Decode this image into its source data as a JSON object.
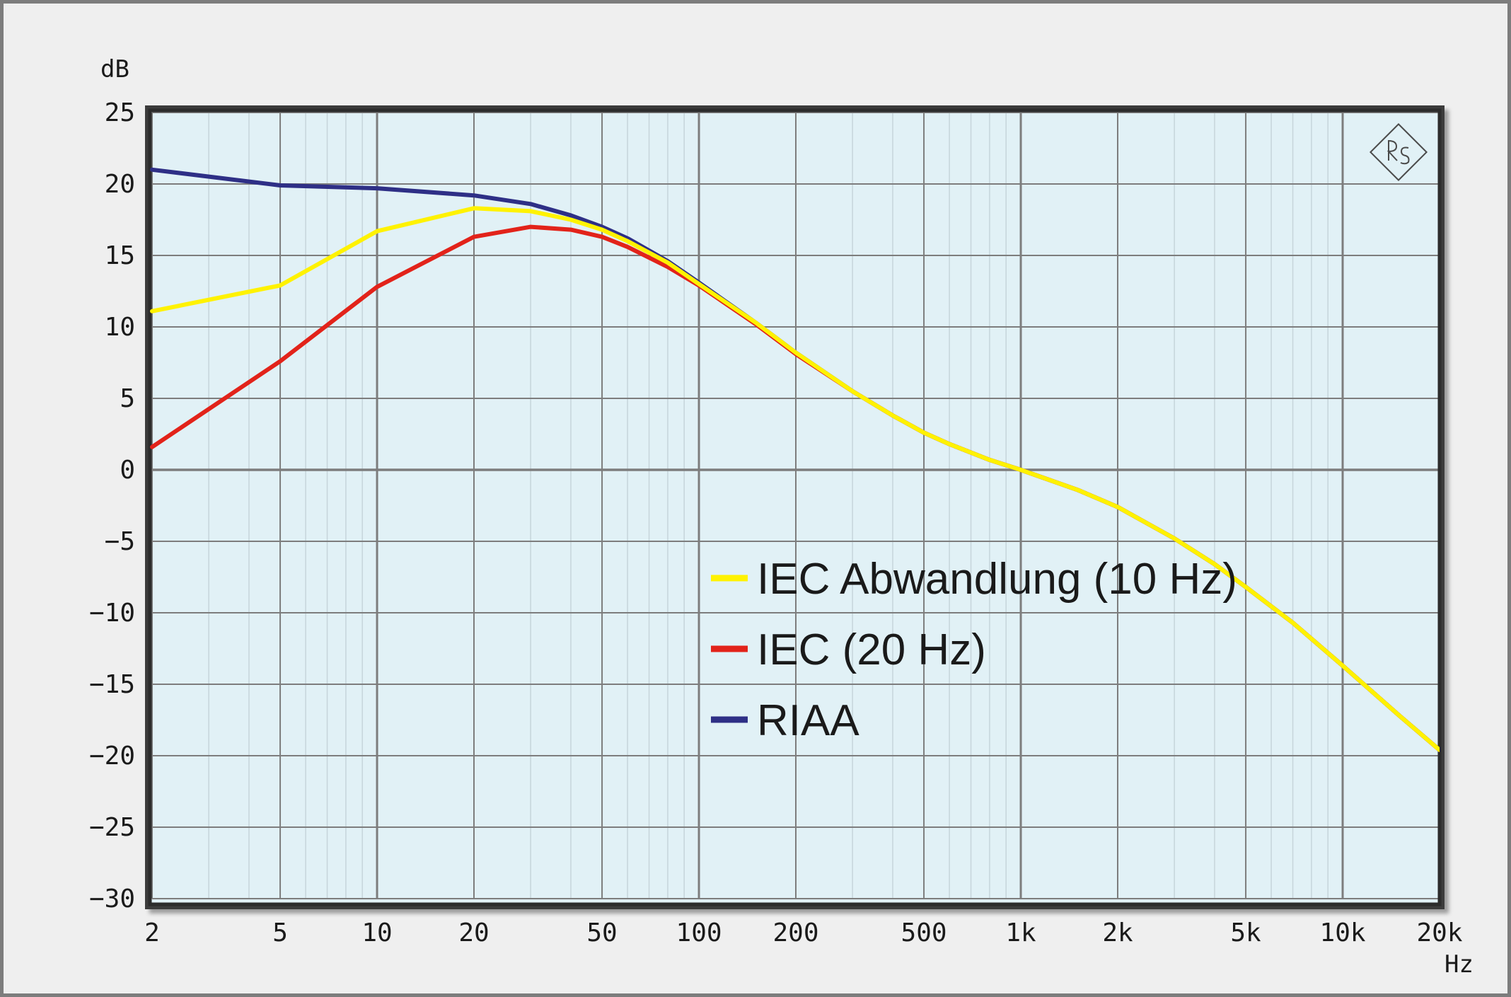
{
  "chart_data": {
    "type": "line",
    "xlabel": "Hz",
    "ylabel": "dB",
    "x_scale": "log",
    "xlim": [
      2,
      20000
    ],
    "ylim": [
      -30,
      25
    ],
    "x_ticks": [
      {
        "value": 2,
        "label": "2"
      },
      {
        "value": 5,
        "label": "5"
      },
      {
        "value": 10,
        "label": "10"
      },
      {
        "value": 20,
        "label": "20"
      },
      {
        "value": 50,
        "label": "50"
      },
      {
        "value": 100,
        "label": "100"
      },
      {
        "value": 200,
        "label": "200"
      },
      {
        "value": 500,
        "label": "500"
      },
      {
        "value": 1000,
        "label": "1k"
      },
      {
        "value": 2000,
        "label": "2k"
      },
      {
        "value": 5000,
        "label": "5k"
      },
      {
        "value": 10000,
        "label": "10k"
      },
      {
        "value": 20000,
        "label": "20k"
      }
    ],
    "y_ticks": [
      {
        "value": 25,
        "label": "25"
      },
      {
        "value": 20,
        "label": "20"
      },
      {
        "value": 15,
        "label": "15"
      },
      {
        "value": 10,
        "label": "10"
      },
      {
        "value": 5,
        "label": "5"
      },
      {
        "value": 0,
        "label": "0"
      },
      {
        "value": -5,
        "label": "−5"
      },
      {
        "value": -10,
        "label": "−10"
      },
      {
        "value": -15,
        "label": "−15"
      },
      {
        "value": -20,
        "label": "−20"
      },
      {
        "value": -25,
        "label": "−25"
      },
      {
        "value": -30,
        "label": "−30"
      }
    ],
    "grid": true,
    "legend_position": "center",
    "colors": {
      "plot_background": "#e1f1f6",
      "grid_major": "#7d7d7d",
      "grid_minor": "#c6d5db",
      "frame": "#2c2c2c"
    },
    "series": [
      {
        "name": "RIAA",
        "color": "#2e2f86",
        "points": [
          [
            2,
            21.0
          ],
          [
            5,
            19.9
          ],
          [
            10,
            19.7
          ],
          [
            20,
            19.2
          ],
          [
            30,
            18.6
          ],
          [
            40,
            17.8
          ],
          [
            50,
            17.0
          ],
          [
            60,
            16.2
          ],
          [
            80,
            14.6
          ],
          [
            100,
            13.1
          ],
          [
            150,
            10.3
          ],
          [
            200,
            8.2
          ],
          [
            300,
            5.5
          ],
          [
            400,
            3.8
          ],
          [
            500,
            2.6
          ],
          [
            600,
            1.8
          ],
          [
            800,
            0.7
          ],
          [
            1000,
            0.0
          ],
          [
            1500,
            -1.4
          ],
          [
            2000,
            -2.6
          ],
          [
            3000,
            -4.8
          ],
          [
            4000,
            -6.6
          ],
          [
            5000,
            -8.2
          ],
          [
            7000,
            -10.7
          ],
          [
            10000,
            -13.7
          ],
          [
            15000,
            -17.2
          ],
          [
            20000,
            -19.6
          ]
        ]
      },
      {
        "name": "IEC Abwandlung (10 Hz)",
        "color": "#fff200",
        "points": [
          [
            2,
            11.1
          ],
          [
            5,
            12.9
          ],
          [
            10,
            16.7
          ],
          [
            20,
            18.3
          ],
          [
            30,
            18.1
          ],
          [
            40,
            17.5
          ],
          [
            50,
            16.8
          ],
          [
            60,
            16.0
          ],
          [
            80,
            14.5
          ],
          [
            100,
            13.0
          ],
          [
            150,
            10.3
          ],
          [
            200,
            8.2
          ],
          [
            300,
            5.5
          ],
          [
            400,
            3.8
          ],
          [
            500,
            2.6
          ],
          [
            600,
            1.8
          ],
          [
            800,
            0.7
          ],
          [
            1000,
            0.0
          ],
          [
            1500,
            -1.4
          ],
          [
            2000,
            -2.6
          ],
          [
            3000,
            -4.8
          ],
          [
            4000,
            -6.6
          ],
          [
            5000,
            -8.2
          ],
          [
            7000,
            -10.7
          ],
          [
            10000,
            -13.7
          ],
          [
            15000,
            -17.2
          ],
          [
            20000,
            -19.6
          ]
        ]
      },
      {
        "name": "IEC (20 Hz)",
        "color": "#e2231a",
        "points": [
          [
            2,
            1.6
          ],
          [
            5,
            7.6
          ],
          [
            10,
            12.8
          ],
          [
            20,
            16.3
          ],
          [
            30,
            17.0
          ],
          [
            40,
            16.8
          ],
          [
            50,
            16.3
          ],
          [
            60,
            15.6
          ],
          [
            80,
            14.2
          ],
          [
            100,
            12.9
          ],
          [
            150,
            10.2
          ],
          [
            200,
            8.1
          ],
          [
            300,
            5.5
          ],
          [
            400,
            3.8
          ],
          [
            500,
            2.6
          ],
          [
            600,
            1.8
          ],
          [
            800,
            0.7
          ],
          [
            1000,
            0.0
          ],
          [
            1500,
            -1.4
          ],
          [
            2000,
            -2.6
          ],
          [
            3000,
            -4.8
          ],
          [
            4000,
            -6.6
          ],
          [
            5000,
            -8.2
          ],
          [
            7000,
            -10.7
          ],
          [
            10000,
            -13.7
          ],
          [
            15000,
            -17.2
          ],
          [
            20000,
            -19.6
          ]
        ]
      }
    ],
    "legend_order": [
      "IEC Abwandlung (10 Hz)",
      "IEC (20 Hz)",
      "RIAA"
    ],
    "draw_order": [
      "RIAA",
      "IEC (20 Hz)",
      "IEC Abwandlung (10 Hz)"
    ],
    "logo": "rohde-schwarz-logo"
  }
}
